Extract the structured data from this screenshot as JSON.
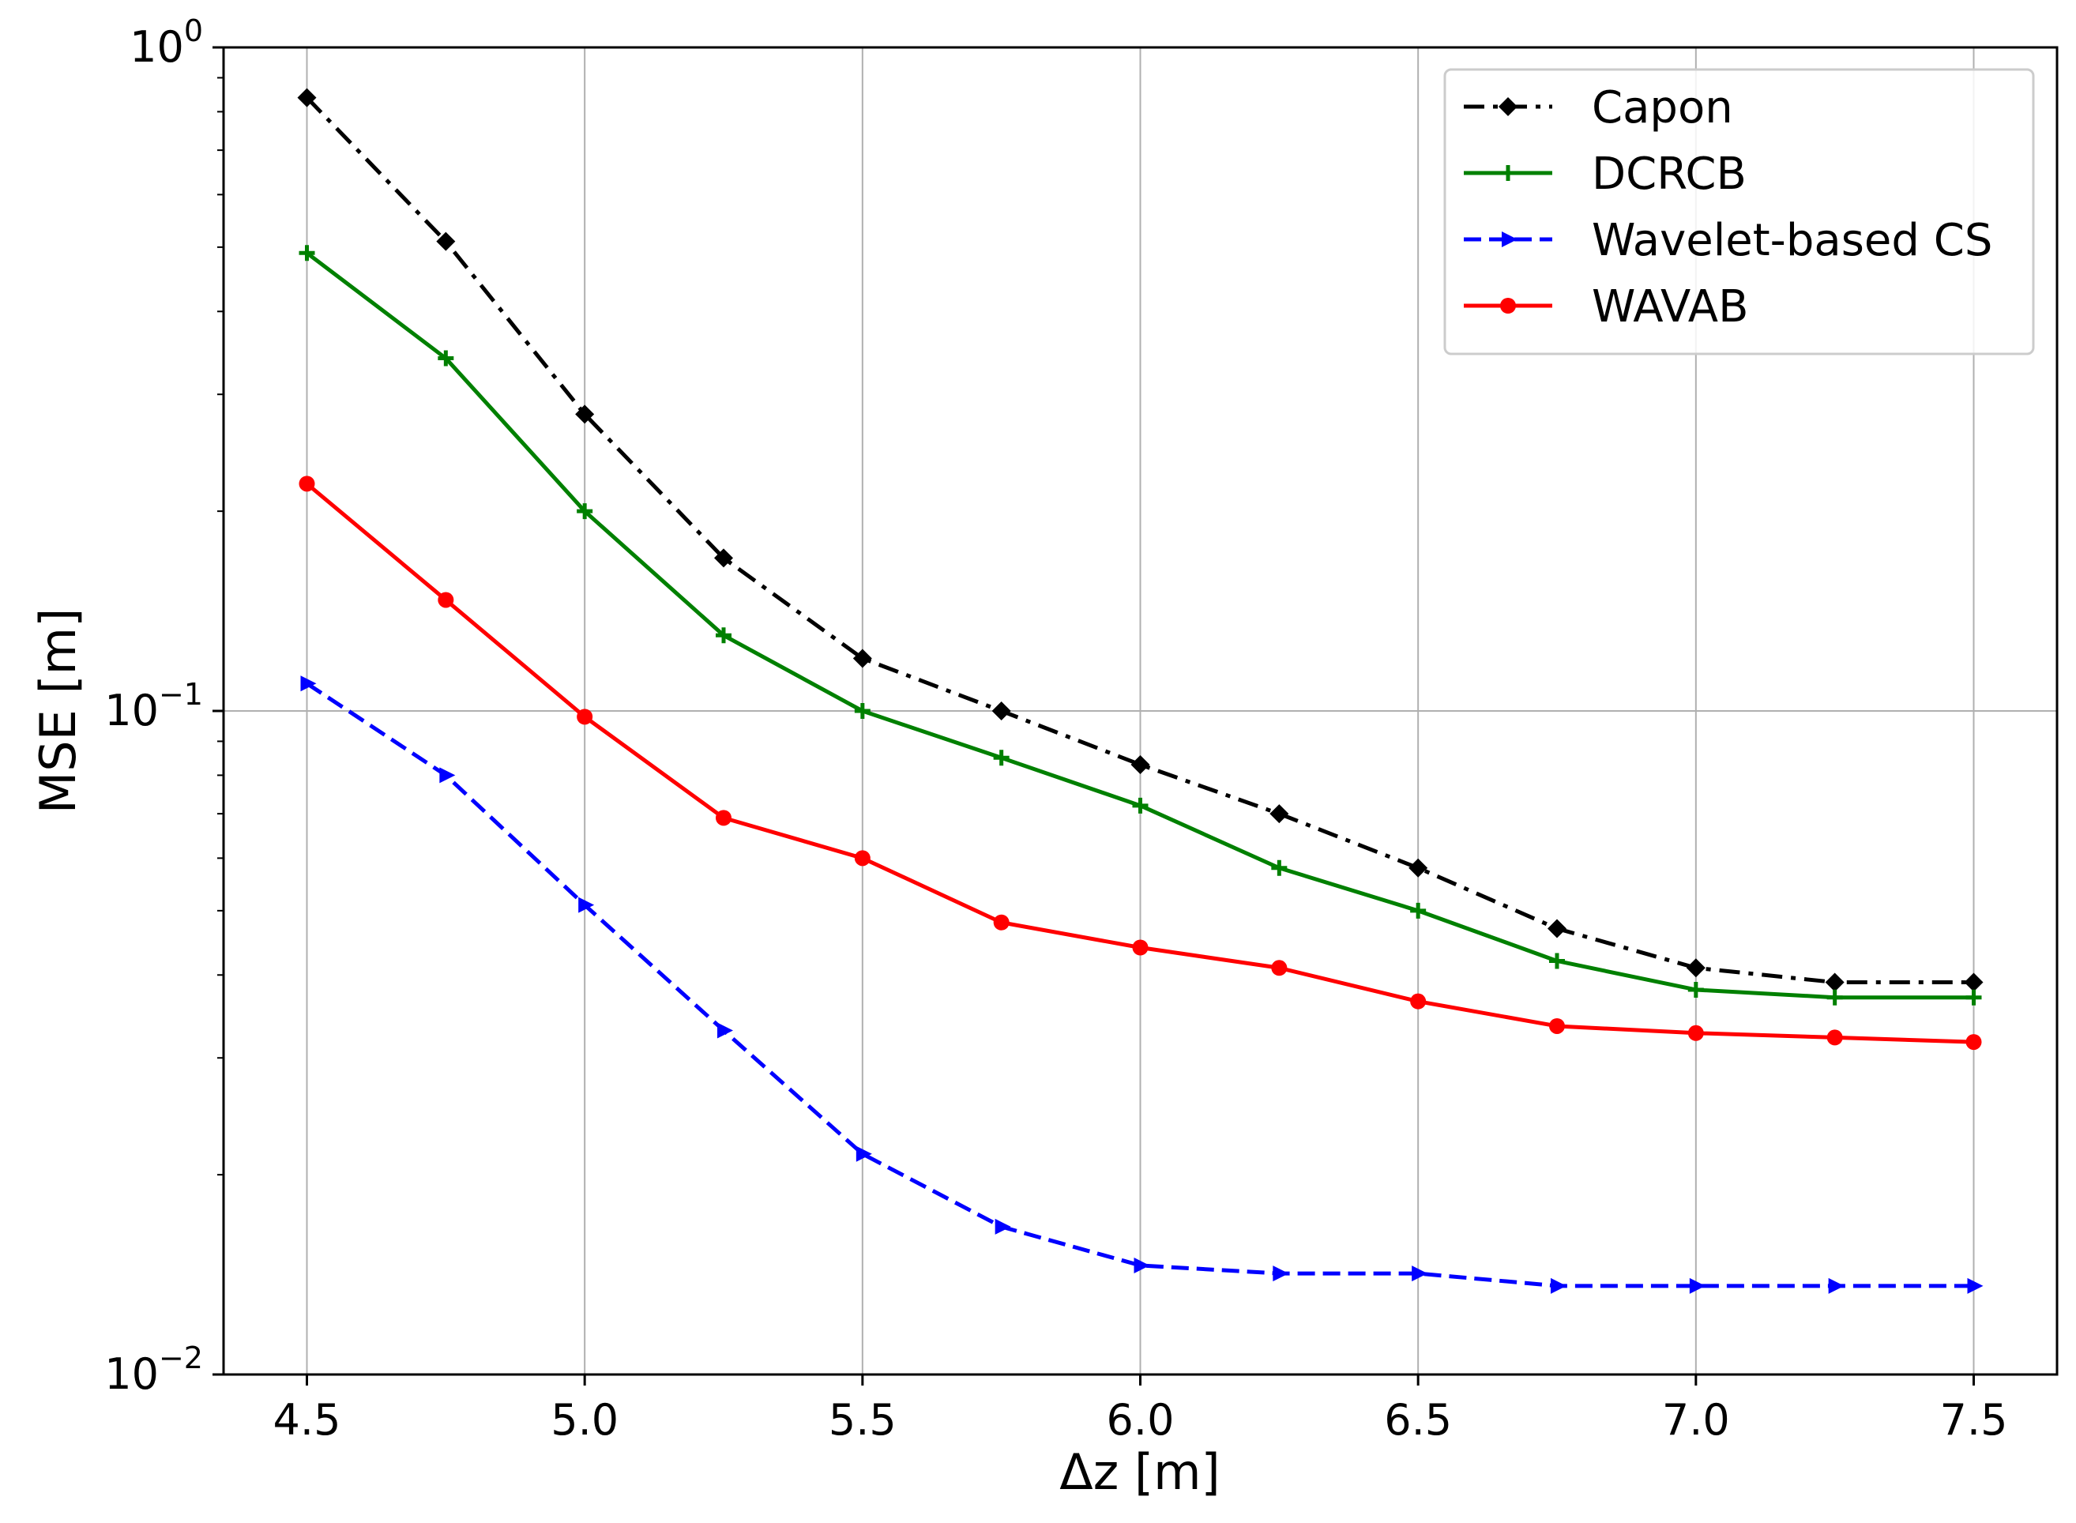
{
  "chart_data": {
    "type": "line",
    "title": "",
    "xlabel": "Δz [m]",
    "ylabel": "MSE [m]",
    "xlim": [
      4.35,
      7.65
    ],
    "ylim": [
      0.01,
      1.0
    ],
    "yscale": "log",
    "grid": true,
    "legend_position": "top-right",
    "x_ticks": [
      "4.5",
      "5.0",
      "5.5",
      "6.0",
      "6.5",
      "7.0",
      "7.5"
    ],
    "y_ticks": [
      {
        "value": 0.01,
        "base": "10",
        "exp": "−2"
      },
      {
        "value": 0.1,
        "base": "10",
        "exp": "−1"
      },
      {
        "value": 1.0,
        "base": "10",
        "exp": "0"
      }
    ],
    "x": [
      4.5,
      4.75,
      5.0,
      5.25,
      5.5,
      5.75,
      6.0,
      6.25,
      6.5,
      6.75,
      7.0,
      7.25,
      7.5
    ],
    "series": [
      {
        "name": "Capon",
        "color": "#000000",
        "style": "dashdot",
        "marker": "diamond",
        "values": [
          0.84,
          0.51,
          0.28,
          0.17,
          0.12,
          0.1,
          0.083,
          0.07,
          0.058,
          0.047,
          0.041,
          0.039,
          0.039
        ]
      },
      {
        "name": "DCRCB",
        "color": "#008000",
        "style": "solid",
        "marker": "plus",
        "values": [
          0.49,
          0.34,
          0.2,
          0.13,
          0.1,
          0.085,
          0.072,
          0.058,
          0.05,
          0.042,
          0.038,
          0.037,
          0.037
        ]
      },
      {
        "name": "Wavelet-based CS",
        "color": "#0000ff",
        "style": "dashed",
        "marker": "triangle-right",
        "values": [
          0.11,
          0.08,
          0.051,
          0.033,
          0.0215,
          0.0167,
          0.0146,
          0.0142,
          0.0142,
          0.0136,
          0.0136,
          0.0136,
          0.0136
        ]
      },
      {
        "name": "WAVAB",
        "color": "#ff0000",
        "style": "solid",
        "marker": "circle",
        "values": [
          0.22,
          0.147,
          0.098,
          0.069,
          0.06,
          0.048,
          0.044,
          0.041,
          0.0365,
          0.0335,
          0.0327,
          0.0322,
          0.0317
        ]
      }
    ]
  }
}
